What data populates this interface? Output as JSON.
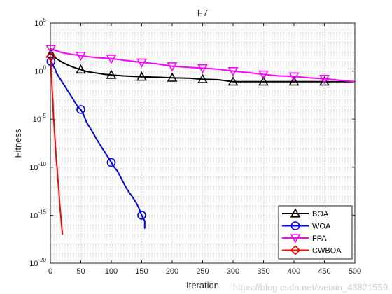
{
  "chart_data": {
    "type": "line",
    "title": "F7",
    "xlabel": "Iteration",
    "ylabel": "Fitness",
    "xlim": [
      0,
      500
    ],
    "ylim_log10": [
      -20,
      5
    ],
    "yscale": "log",
    "grid": true,
    "legend_position": "bottom-right",
    "x_ticks": [
      "0",
      "50",
      "100",
      "150",
      "200",
      "250",
      "300",
      "350",
      "400",
      "450",
      "500"
    ],
    "y_ticks": [
      {
        "base": "10",
        "exp": "-20"
      },
      {
        "base": "10",
        "exp": "-15"
      },
      {
        "base": "10",
        "exp": "-10"
      },
      {
        "base": "10",
        "exp": "-5"
      },
      {
        "base": "10",
        "exp": "0"
      },
      {
        "base": "10",
        "exp": "5"
      }
    ],
    "series": [
      {
        "name": "BOA",
        "color": "#000000",
        "marker": "triangle-up",
        "log10_y": [
          [
            1,
            1.8
          ],
          [
            10,
            1.3
          ],
          [
            20,
            0.9
          ],
          [
            30,
            0.6
          ],
          [
            40,
            0.35
          ],
          [
            50,
            0.15
          ],
          [
            60,
            -0.05
          ],
          [
            70,
            -0.15
          ],
          [
            80,
            -0.25
          ],
          [
            90,
            -0.35
          ],
          [
            100,
            -0.4
          ],
          [
            120,
            -0.5
          ],
          [
            150,
            -0.6
          ],
          [
            180,
            -0.65
          ],
          [
            200,
            -0.7
          ],
          [
            230,
            -0.75
          ],
          [
            250,
            -0.85
          ],
          [
            275,
            -0.9
          ],
          [
            300,
            -1.1
          ],
          [
            350,
            -1.1
          ],
          [
            400,
            -1.1
          ],
          [
            450,
            -1.1
          ],
          [
            500,
            -1.1
          ]
        ],
        "markers_x": [
          1,
          50,
          100,
          150,
          200,
          250,
          300,
          350,
          400,
          450
        ]
      },
      {
        "name": "WOA",
        "color": "#0000ff",
        "marker": "circle",
        "log10_y": [
          [
            1,
            1.0
          ],
          [
            3,
            0.8
          ],
          [
            5,
            0.5
          ],
          [
            8,
            0.2
          ],
          [
            10,
            -0.2
          ],
          [
            15,
            -0.7
          ],
          [
            20,
            -1.2
          ],
          [
            25,
            -1.7
          ],
          [
            30,
            -2.2
          ],
          [
            35,
            -2.7
          ],
          [
            40,
            -3.2
          ],
          [
            45,
            -3.7
          ],
          [
            50,
            -4.0
          ],
          [
            55,
            -4.6
          ],
          [
            60,
            -5.4
          ],
          [
            65,
            -5.9
          ],
          [
            70,
            -6.4
          ],
          [
            75,
            -7.0
          ],
          [
            80,
            -7.5
          ],
          [
            85,
            -8.0
          ],
          [
            90,
            -8.5
          ],
          [
            95,
            -9.0
          ],
          [
            100,
            -9.5
          ],
          [
            105,
            -10.0
          ],
          [
            110,
            -10.4
          ],
          [
            115,
            -11.0
          ],
          [
            120,
            -11.6
          ],
          [
            125,
            -12.2
          ],
          [
            130,
            -12.7
          ],
          [
            135,
            -13.1
          ],
          [
            140,
            -13.6
          ],
          [
            145,
            -14.2
          ],
          [
            150,
            -15.0
          ],
          [
            155,
            -15.6
          ],
          [
            155,
            -16.4
          ]
        ],
        "markers_x": [
          1,
          50,
          100,
          150
        ]
      },
      {
        "name": "FPA",
        "color": "#ff00ff",
        "marker": "triangle-down",
        "log10_y": [
          [
            1,
            2.3
          ],
          [
            20,
            1.9
          ],
          [
            40,
            1.7
          ],
          [
            50,
            1.6
          ],
          [
            75,
            1.4
          ],
          [
            100,
            1.3
          ],
          [
            125,
            1.1
          ],
          [
            150,
            0.9
          ],
          [
            175,
            0.75
          ],
          [
            200,
            0.5
          ],
          [
            225,
            0.4
          ],
          [
            250,
            0.3
          ],
          [
            275,
            0.2
          ],
          [
            300,
            0.0
          ],
          [
            325,
            -0.15
          ],
          [
            350,
            -0.35
          ],
          [
            375,
            -0.5
          ],
          [
            400,
            -0.55
          ],
          [
            425,
            -0.7
          ],
          [
            450,
            -0.8
          ],
          [
            475,
            -0.95
          ],
          [
            500,
            -1.1
          ]
        ],
        "markers_x": [
          1,
          50,
          100,
          150,
          200,
          250,
          300,
          350,
          400,
          450
        ]
      },
      {
        "name": "CWBOA",
        "color": "#ff0000",
        "marker": "diamond",
        "log10_y": [
          [
            1,
            1.5
          ],
          [
            2,
            -0.5
          ],
          [
            3,
            -2.0
          ],
          [
            4,
            -3.0
          ],
          [
            5,
            -4.5
          ],
          [
            6,
            -5.5
          ],
          [
            7,
            -6.5
          ],
          [
            8,
            -7.5
          ],
          [
            9,
            -8.5
          ],
          [
            10,
            -9.5
          ],
          [
            11,
            -10.0
          ],
          [
            12,
            -11.0
          ],
          [
            13,
            -11.7
          ],
          [
            14,
            -12.5
          ],
          [
            15,
            -13.5
          ],
          [
            16,
            -14.3
          ],
          [
            17,
            -15.0
          ],
          [
            18,
            -15.8
          ],
          [
            19,
            -16.4
          ],
          [
            20,
            -17.0
          ]
        ],
        "markers_x": [
          1
        ]
      }
    ]
  },
  "watermark": "https://blog.csdn.net/weixin_43821559"
}
